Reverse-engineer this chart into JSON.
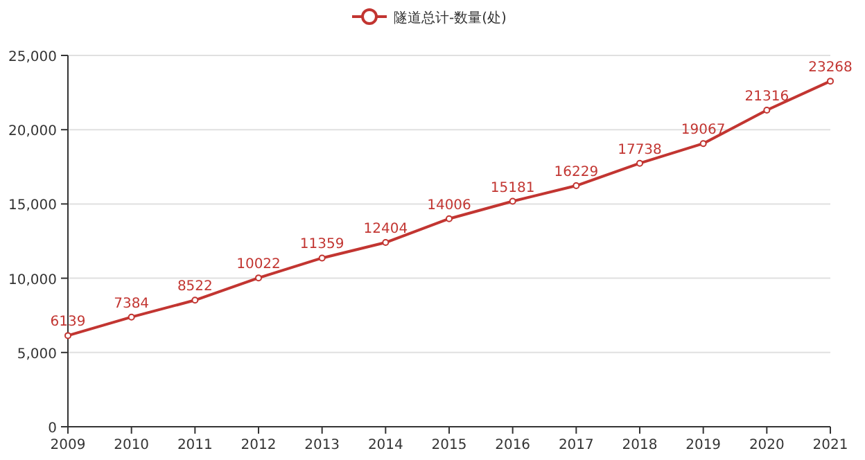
{
  "chart_data": {
    "type": "line",
    "categories": [
      "2009",
      "2010",
      "2011",
      "2012",
      "2013",
      "2014",
      "2015",
      "2016",
      "2017",
      "2018",
      "2019",
      "2020",
      "2021"
    ],
    "series": [
      {
        "name": "隧道总计-数量(处)",
        "color": "#c23531",
        "values": [
          6139,
          7384,
          8522,
          10022,
          11359,
          12404,
          14006,
          15181,
          16229,
          17738,
          19067,
          21316,
          23268
        ]
      }
    ],
    "ylim": [
      0,
      25000
    ],
    "yticks": [
      0,
      {
        "value": 5000,
        "label": "5,000"
      },
      {
        "value": 10000,
        "label": "10,000"
      },
      {
        "value": 15000,
        "label": "15,000"
      },
      {
        "value": 20000,
        "label": "20,000"
      },
      {
        "value": 25000,
        "label": "25,000"
      }
    ],
    "grid": "y",
    "legend": "top",
    "marker": "circle",
    "line_style": "solid",
    "data_labels": true
  }
}
